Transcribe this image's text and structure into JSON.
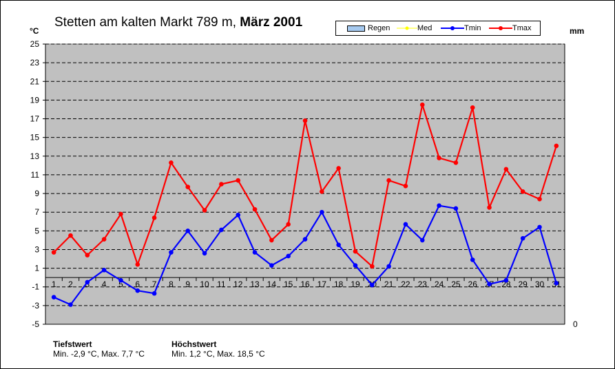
{
  "title": {
    "station": "Stetten am kalten Markt 789 m,",
    "period": "März 2001"
  },
  "y_unit_left": "°C",
  "y_unit_right": "mm",
  "right_axis_tick": "0",
  "legend": [
    {
      "label": "Regen",
      "kind": "bar",
      "color": "#a6caf0"
    },
    {
      "label": "Med",
      "kind": "line",
      "color": "#ffff00"
    },
    {
      "label": "Tmin",
      "kind": "line",
      "color": "#0000ff"
    },
    {
      "label": "Tmax",
      "kind": "line",
      "color": "#ff0000"
    }
  ],
  "stats": {
    "low_heading": "Tiefstwert",
    "low_text": "Min. -2,9 °C, Max. 7,7 °C",
    "high_heading": "Höchstwert",
    "high_text": "Min. 1,2 °C, Max. 18,5 °C"
  },
  "colors": {
    "plot_background": "#c0c0c0",
    "tmin": "#0000ff",
    "tmax": "#ff0000",
    "grid": "#000000"
  },
  "chart_data": {
    "type": "line",
    "x": [
      1,
      2,
      3,
      4,
      5,
      6,
      7,
      8,
      9,
      10,
      11,
      12,
      13,
      14,
      15,
      16,
      17,
      18,
      19,
      20,
      21,
      22,
      23,
      24,
      25,
      26,
      27,
      28,
      29,
      30,
      31
    ],
    "ylim": [
      -5,
      25
    ],
    "yticks": [
      -5,
      -3,
      -1,
      1,
      3,
      5,
      7,
      9,
      11,
      13,
      15,
      17,
      19,
      21,
      23,
      25
    ],
    "grid": "dashed horizontal",
    "legend_position": "top-right",
    "series": [
      {
        "name": "Tmin",
        "color": "#0000ff",
        "values": [
          -2.1,
          -2.9,
          -0.5,
          0.8,
          -0.3,
          -1.4,
          -1.7,
          2.7,
          5.0,
          2.6,
          5.1,
          6.7,
          2.7,
          1.3,
          2.3,
          4.1,
          7.0,
          3.5,
          1.3,
          -0.8,
          1.2,
          5.7,
          4.0,
          7.7,
          7.4,
          1.9,
          -0.7,
          -0.3,
          4.2,
          5.4,
          -0.6
        ]
      },
      {
        "name": "Tmax",
        "color": "#ff0000",
        "values": [
          2.7,
          4.5,
          2.4,
          4.1,
          6.8,
          1.4,
          6.4,
          12.3,
          9.7,
          7.2,
          10.0,
          10.4,
          7.3,
          4.0,
          5.7,
          16.8,
          9.2,
          11.7,
          2.8,
          1.2,
          10.4,
          9.8,
          18.5,
          12.8,
          12.3,
          18.2,
          7.5,
          11.6,
          9.2,
          8.4,
          14.1
        ]
      }
    ]
  }
}
